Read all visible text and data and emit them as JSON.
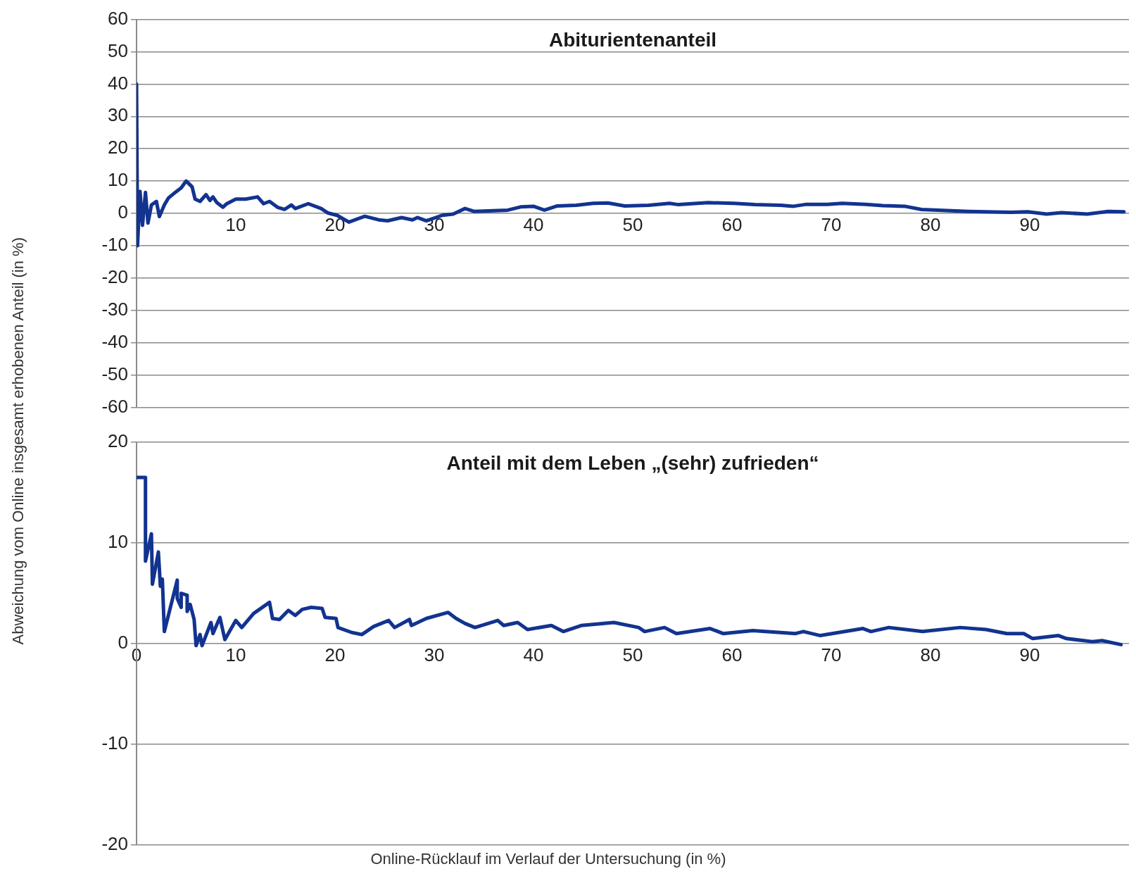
{
  "chart_data": [
    {
      "type": "line",
      "title": "Abiturientenanteil",
      "ylabel": "Abweichung vom Online insgesamt erhobenen Anteil (in %)",
      "x": [
        0,
        0.1,
        0.35,
        0.6,
        0.9,
        1.15,
        1.5,
        2,
        2.3,
        2.8,
        3.2,
        3.9,
        4.5,
        5.0,
        5.6,
        5.9,
        6.4,
        7.0,
        7.4,
        7.7,
        8.1,
        8.7,
        9.1,
        10.0,
        11,
        12.2,
        12.8,
        13.4,
        14.2,
        14.9,
        15.6,
        16,
        17.3,
        18.6,
        19.3,
        20.2,
        21.4,
        23,
        24.4,
        25.3,
        26.7,
        27.8,
        28.3,
        29.2,
        30.8,
        31.9,
        33.1,
        34,
        37.4,
        38.7,
        40,
        41.1,
        42.4,
        44.3,
        46,
        47.5,
        49.2,
        51.6,
        53.7,
        54.6,
        57.6,
        60.2,
        62.3,
        64.9,
        66.2,
        67.5,
        69.6,
        71.1,
        73.5,
        75.2,
        77.4,
        79.1,
        81.2,
        83.8,
        88.1,
        89.8,
        91.7,
        93.2,
        95.8,
        97.9,
        99.5
      ],
      "series": [
        {
          "color": "#12338f",
          "values": [
            40,
            -10,
            6.8,
            -3.7,
            6.5,
            -3,
            2.6,
            3.7,
            -1,
            2.6,
            4.7,
            6.5,
            7.9,
            10,
            8.2,
            4.4,
            3.7,
            5.8,
            4,
            5.1,
            3.3,
            1.9,
            3,
            4.4,
            4.4,
            5.1,
            3,
            3.7,
            1.9,
            1.2,
            2.6,
            1.5,
            3,
            1.5,
            0.1,
            -0.6,
            -2.7,
            -0.9,
            -2,
            -2.3,
            -1.3,
            -2,
            -1.3,
            -2.3,
            -0.6,
            -0.2,
            1.5,
            0.6,
            1.0,
            2.0,
            2.2,
            1.0,
            2.3,
            2.5,
            3.1,
            3.2,
            2.3,
            2.5,
            3.1,
            2.7,
            3.3,
            3.1,
            2.7,
            2.5,
            2.2,
            2.8,
            2.8,
            3.1,
            2.8,
            2.4,
            2.2,
            1.2,
            0.9,
            0.6,
            0.3,
            0.5,
            -0.2,
            0.2,
            -0.2,
            0.6,
            0.5
          ]
        }
      ],
      "xlim": [
        0,
        100
      ],
      "xticks": [
        {
          "value": 0,
          "label": null
        },
        10,
        20,
        30,
        40,
        50,
        60,
        70,
        80,
        90
      ],
      "ylim": [
        -60,
        60
      ],
      "yticks": [
        -60,
        -50,
        -40,
        -30,
        -20,
        -10,
        0,
        10,
        20,
        30,
        40,
        50,
        60
      ],
      "grid": "y",
      "legend": false,
      "marker": "none",
      "line_style": "solid"
    },
    {
      "type": "line",
      "title": "Anteil mit dem Leben „(sehr) zufrieden“",
      "xlabel": "Online-Rücklauf im Verlauf der Untersuchung (in %)",
      "x": [
        0,
        0.9,
        0.9,
        1.5,
        1.6,
        2.2,
        2.4,
        2.6,
        2.8,
        4.1,
        4.1,
        4.5,
        4.5,
        5.1,
        5.1,
        5.4,
        5.8,
        6,
        6.4,
        6.6,
        7.5,
        7.7,
        8.4,
        8.9,
        10,
        10.6,
        11.8,
        13.4,
        13.7,
        14.4,
        15.3,
        16,
        16.7,
        17.6,
        18.7,
        19,
        20.1,
        20.3,
        21.7,
        22.7,
        23.9,
        25.4,
        26,
        27.5,
        27.7,
        29.2,
        31.4,
        32.2,
        33.1,
        34.1,
        36.4,
        37,
        38.4,
        39.4,
        41.8,
        43,
        44.8,
        48.1,
        50.6,
        51.2,
        53.2,
        54.4,
        57.8,
        59.1,
        62.1,
        66.4,
        67.2,
        68.9,
        73.2,
        74,
        75.8,
        79.2,
        83,
        85.6,
        87.7,
        89.4,
        90.3,
        92.9,
        93.7,
        96.3,
        97.3,
        99.2
      ],
      "series": [
        {
          "color": "#12338f",
          "values": [
            16.5,
            16.5,
            8.2,
            10.9,
            5.9,
            9.1,
            5.7,
            6.4,
            1.2,
            6.3,
            4.5,
            3.6,
            5,
            4.8,
            3.2,
            3.9,
            2.4,
            -0.2,
            0.9,
            -0.2,
            2.1,
            1,
            2.6,
            0.4,
            2.3,
            1.6,
            3,
            4.1,
            2.5,
            2.4,
            3.3,
            2.8,
            3.4,
            3.6,
            3.5,
            2.6,
            2.5,
            1.6,
            1.1,
            0.9,
            1.7,
            2.3,
            1.6,
            2.4,
            1.8,
            2.5,
            3.1,
            2.5,
            2.0,
            1.6,
            2.3,
            1.8,
            2.1,
            1.4,
            1.8,
            1.2,
            1.8,
            2.1,
            1.6,
            1.2,
            1.6,
            1.0,
            1.5,
            1.0,
            1.3,
            1.0,
            1.2,
            0.8,
            1.5,
            1.2,
            1.6,
            1.2,
            1.6,
            1.4,
            1.0,
            1.0,
            0.5,
            0.8,
            0.5,
            0.2,
            0.3,
            -0.1
          ]
        }
      ],
      "xlim": [
        0,
        100
      ],
      "xticks": [
        0,
        10,
        20,
        30,
        40,
        50,
        60,
        70,
        80,
        90
      ],
      "ylim": [
        -20,
        20
      ],
      "yticks": [
        -20,
        -10,
        0,
        10,
        20
      ],
      "grid": "y",
      "legend": false,
      "marker": "none",
      "line_style": "solid"
    }
  ]
}
